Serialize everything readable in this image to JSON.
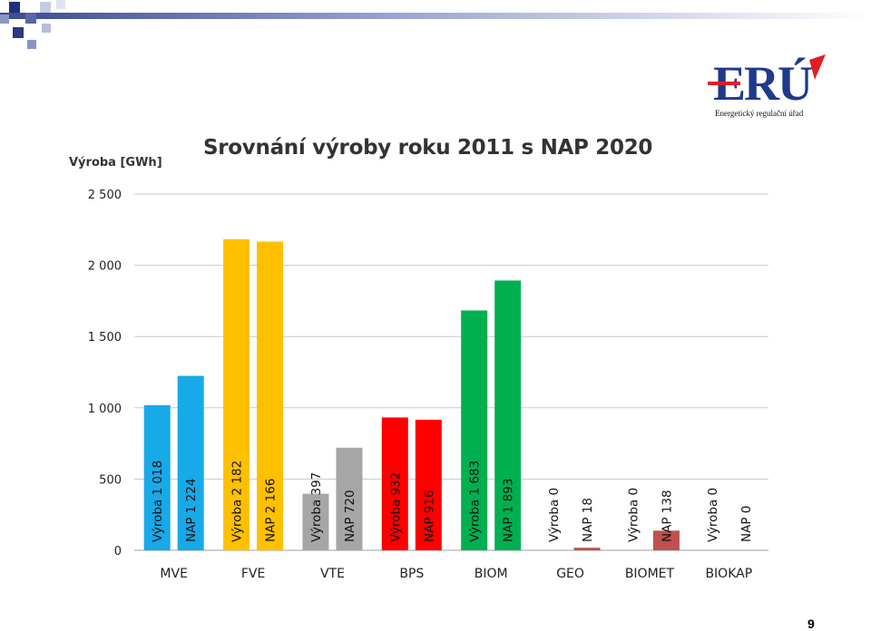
{
  "slide": {
    "page_number": "9"
  },
  "logo": {
    "text": "ERÚ",
    "caption": "Energetický regulační úřad"
  },
  "colors": {
    "MVE": "#17a9e8",
    "FVE": "#ffc000",
    "VTE": "#a6a6a6",
    "BPS": "#ff0000",
    "BIOM": "#00b050",
    "GEO": "#c0504d",
    "BIOMET": "#c0504d",
    "BIOKAP": "#c0504d",
    "header_dark": "#1f2f7a",
    "header_mid": "#8a95c4",
    "logo_blue": "#1f3a8a",
    "logo_red": "#e31e24"
  },
  "chart_data": {
    "type": "bar",
    "title": "Srovnání  výroby roku 2011 s NAP 2020",
    "ylabel": "Výroba [GWh]",
    "xlabel": "",
    "ylim": [
      0,
      2500
    ],
    "y_ticks": [
      "0",
      "500",
      "1 000",
      "1 500",
      "2 000",
      "2 500"
    ],
    "y_tick_values": [
      0,
      500,
      1000,
      1500,
      2000,
      2500
    ],
    "grid": true,
    "categories": [
      "MVE",
      "FVE",
      "VTE",
      "BPS",
      "BIOM",
      "GEO",
      "BIOMET",
      "BIOKAP"
    ],
    "series": [
      {
        "name": "Výroba",
        "values": [
          1018,
          2182,
          397,
          932,
          1683,
          0,
          0,
          0
        ],
        "labels": [
          "Výroba   1 018",
          "Výroba   2 182",
          "Výroba   397",
          "Výroba   932",
          "Výroba   1 683",
          "Výroba   0",
          "Výroba   0",
          "Výroba   0"
        ]
      },
      {
        "name": "NAP",
        "values": [
          1224,
          2166,
          720,
          916,
          1893,
          18,
          138,
          0
        ],
        "labels": [
          "NAP   1 224",
          "NAP   2 166",
          "NAP   720",
          "NAP   916",
          "NAP   1 893",
          "NAP   18",
          "NAP   138",
          "NAP   0"
        ]
      }
    ]
  }
}
